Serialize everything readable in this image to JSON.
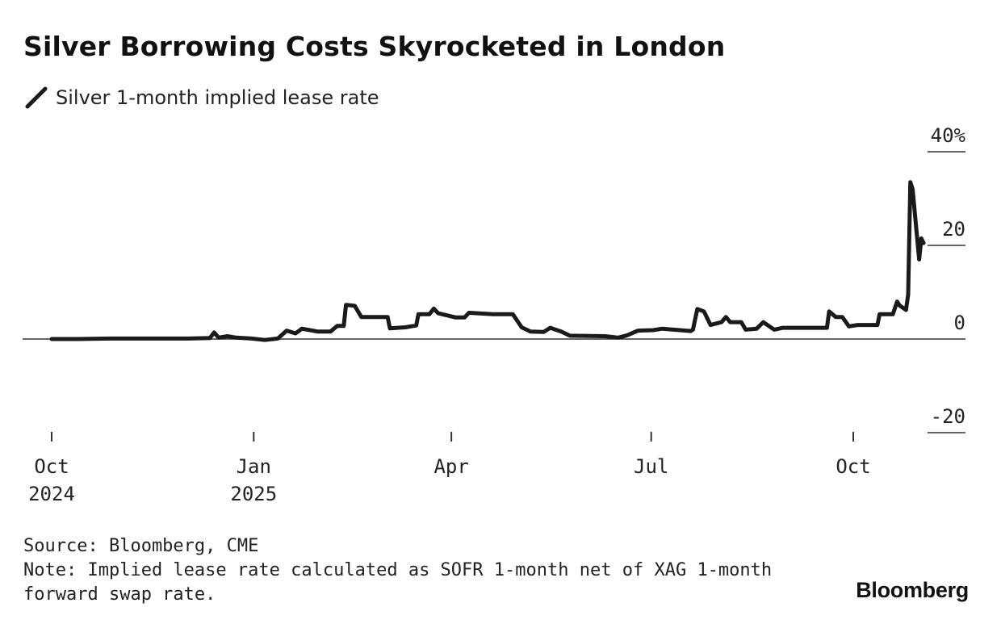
{
  "title": "Silver Borrowing Costs Skyrocketed in London",
  "legend": {
    "label": "Silver 1-month implied lease rate",
    "swatch_icon": "pencil-stroke"
  },
  "source": "Source: Bloomberg, CME",
  "note_line1": "Note: Implied lease rate calculated as SOFR 1-month net of XAG 1-month",
  "note_line2": "forward swap rate.",
  "brand": "Bloomberg",
  "colors": {
    "line": "#1a1a1a",
    "text": "#222222",
    "zero_line": "#333333"
  },
  "chart_data": {
    "type": "line",
    "title": "Silver Borrowing Costs Skyrocketed in London",
    "ylim": [
      -20,
      40
    ],
    "y_ticks": [
      {
        "value": 40,
        "label": "40%"
      },
      {
        "value": 20,
        "label": "20"
      },
      {
        "value": 0,
        "label": "0"
      },
      {
        "value": -20,
        "label": "-20"
      }
    ],
    "x_ticks": [
      {
        "date": "2024-10-01",
        "line1": "Oct",
        "line2": "2024"
      },
      {
        "date": "2025-01-01",
        "line1": "Jan",
        "line2": "2025"
      },
      {
        "date": "2025-04-01",
        "line1": "Apr",
        "line2": ""
      },
      {
        "date": "2025-07-01",
        "line1": "Jul",
        "line2": ""
      },
      {
        "date": "2025-10-01",
        "line1": "Oct",
        "line2": ""
      }
    ],
    "xlim": [
      "2024-10-01",
      "2025-10-17"
    ],
    "grid": false,
    "series": [
      {
        "name": "Silver 1-month implied lease rate",
        "points": [
          [
            "2024-10-01",
            0.0
          ],
          [
            "2024-10-13",
            0.0
          ],
          [
            "2024-10-28",
            0.1
          ],
          [
            "2024-11-17",
            0.1
          ],
          [
            "2024-12-02",
            0.1
          ],
          [
            "2024-12-12",
            0.2
          ],
          [
            "2024-12-14",
            1.4
          ],
          [
            "2024-12-16",
            0.3
          ],
          [
            "2024-12-20",
            0.6
          ],
          [
            "2024-12-24",
            0.3
          ],
          [
            "2024-12-31",
            0.1
          ],
          [
            "2025-01-06",
            -0.2
          ],
          [
            "2025-01-12",
            0.1
          ],
          [
            "2025-01-16",
            1.8
          ],
          [
            "2025-01-20",
            1.2
          ],
          [
            "2025-01-23",
            2.2
          ],
          [
            "2025-01-30",
            1.6
          ],
          [
            "2025-02-05",
            1.6
          ],
          [
            "2025-02-08",
            2.8
          ],
          [
            "2025-02-11",
            2.8
          ],
          [
            "2025-02-12",
            7.3
          ],
          [
            "2025-02-16",
            7.1
          ],
          [
            "2025-02-19",
            4.7
          ],
          [
            "2025-02-26",
            4.7
          ],
          [
            "2025-03-03",
            4.7
          ],
          [
            "2025-03-04",
            2.3
          ],
          [
            "2025-03-11",
            2.5
          ],
          [
            "2025-03-16",
            2.9
          ],
          [
            "2025-03-17",
            5.3
          ],
          [
            "2025-03-22",
            5.3
          ],
          [
            "2025-03-24",
            6.5
          ],
          [
            "2025-03-26",
            5.5
          ],
          [
            "2025-04-03",
            4.6
          ],
          [
            "2025-04-07",
            4.6
          ],
          [
            "2025-04-09",
            5.6
          ],
          [
            "2025-04-20",
            5.3
          ],
          [
            "2025-04-29",
            5.3
          ],
          [
            "2025-05-03",
            2.5
          ],
          [
            "2025-05-07",
            1.6
          ],
          [
            "2025-05-13",
            1.5
          ],
          [
            "2025-05-16",
            2.4
          ],
          [
            "2025-05-21",
            1.6
          ],
          [
            "2025-05-25",
            0.7
          ],
          [
            "2025-06-10",
            0.6
          ],
          [
            "2025-06-16",
            0.3
          ],
          [
            "2025-06-20",
            0.8
          ],
          [
            "2025-06-25",
            1.8
          ],
          [
            "2025-07-02",
            1.9
          ],
          [
            "2025-07-06",
            2.2
          ],
          [
            "2025-07-14",
            1.9
          ],
          [
            "2025-07-19",
            1.7
          ],
          [
            "2025-07-20",
            2.0
          ],
          [
            "2025-07-22",
            6.4
          ],
          [
            "2025-07-25",
            5.9
          ],
          [
            "2025-07-28",
            3.0
          ],
          [
            "2025-08-02",
            3.6
          ],
          [
            "2025-08-04",
            4.7
          ],
          [
            "2025-08-06",
            3.6
          ],
          [
            "2025-08-11",
            3.6
          ],
          [
            "2025-08-13",
            2.0
          ],
          [
            "2025-08-18",
            2.2
          ],
          [
            "2025-08-21",
            3.6
          ],
          [
            "2025-08-26",
            2.0
          ],
          [
            "2025-08-30",
            2.4
          ],
          [
            "2025-09-06",
            2.4
          ],
          [
            "2025-09-19",
            2.4
          ],
          [
            "2025-09-20",
            5.9
          ],
          [
            "2025-09-23",
            4.7
          ],
          [
            "2025-09-26",
            4.7
          ],
          [
            "2025-09-29",
            2.7
          ],
          [
            "2025-10-03",
            3.0
          ],
          [
            "2025-10-08",
            3.0
          ],
          [
            "2025-10-12",
            3.0
          ],
          [
            "2025-10-13",
            5.3
          ],
          [
            "2025-10-19",
            5.3
          ],
          [
            "2025-10-21",
            8.0
          ],
          [
            "2025-10-22",
            7.2
          ],
          [
            "2025-10-25",
            6.2
          ],
          [
            "2025-10-26",
            9.5
          ],
          [
            "2025-10-27",
            33.5
          ],
          [
            "2025-10-28",
            32.0
          ],
          [
            "2025-10-29",
            27.0
          ],
          [
            "2025-10-30",
            22.0
          ],
          [
            "2025-10-31",
            17.0
          ],
          [
            "2025-11-01",
            21.5
          ],
          [
            "2025-11-02",
            20.5
          ]
        ]
      }
    ]
  }
}
